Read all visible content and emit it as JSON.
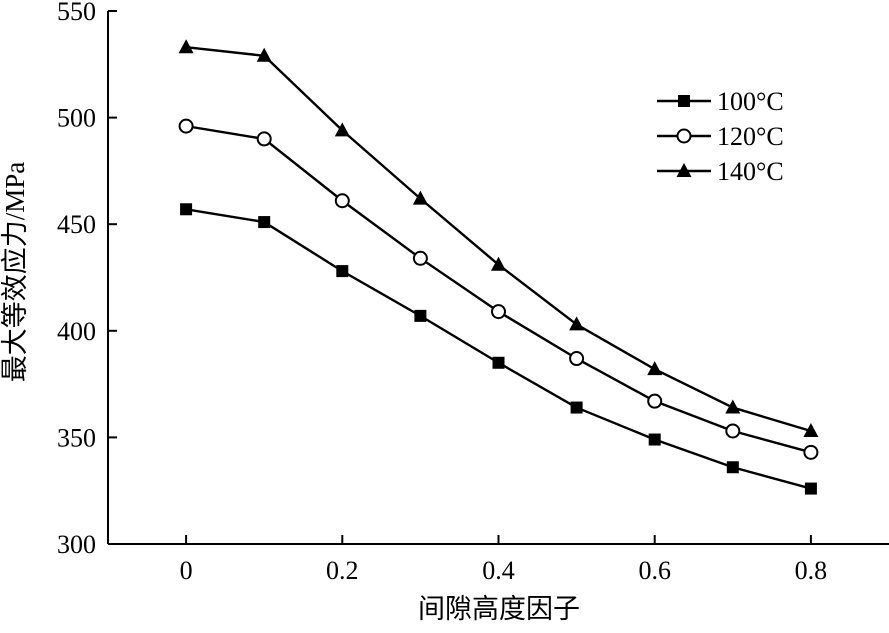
{
  "chart_data": {
    "type": "line",
    "title": "",
    "xlabel": "间隙高度因子",
    "ylabel": "最大等效应力/MPa",
    "x": [
      0,
      0.1,
      0.2,
      0.3,
      0.4,
      0.5,
      0.6,
      0.7,
      0.8
    ],
    "xlim": [
      -0.1,
      0.9
    ],
    "ylim": [
      300,
      550
    ],
    "xticks": [
      0,
      0.2,
      0.4,
      0.6,
      0.8
    ],
    "xtick_labels": [
      "0",
      "0.2",
      "0.4",
      "0.6",
      "0.8"
    ],
    "yticks": [
      300,
      350,
      400,
      450,
      500,
      550
    ],
    "ytick_labels": [
      "300",
      "350",
      "400",
      "450",
      "500",
      "550"
    ],
    "grid": false,
    "legend_position": "top-right",
    "series": [
      {
        "name": "100°C",
        "marker": "square-filled",
        "values": [
          457,
          451,
          428,
          407,
          385,
          364,
          349,
          336,
          326
        ]
      },
      {
        "name": "120°C",
        "marker": "circle-open",
        "values": [
          496,
          490,
          461,
          434,
          409,
          387,
          367,
          353,
          343
        ]
      },
      {
        "name": "140°C",
        "marker": "triangle-filled",
        "values": [
          533,
          529,
          494,
          462,
          431,
          403,
          382,
          364,
          353
        ]
      }
    ]
  }
}
